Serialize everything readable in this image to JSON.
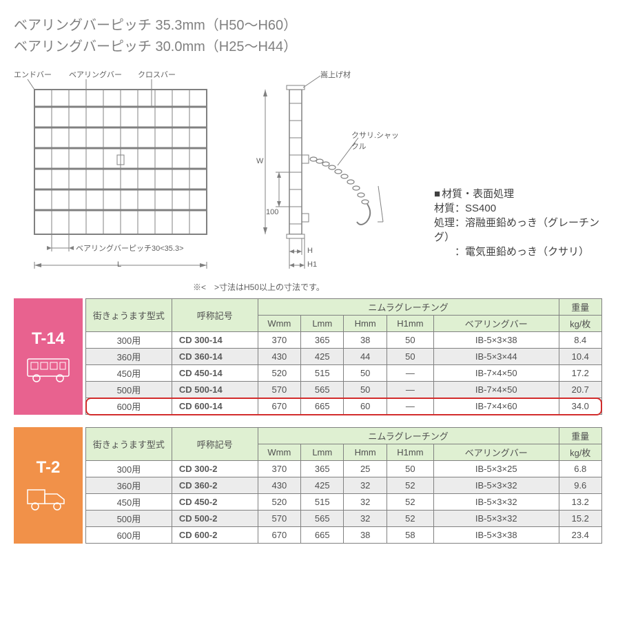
{
  "header": {
    "line1": "ベアリングバーピッチ 35.3mm（H50～H60）",
    "line2": "ベアリングバーピッチ 30.0mm（H25～H44）"
  },
  "diagram1": {
    "labels": {
      "endbar": "エンドバー",
      "bearingbar": "ベアリングバー",
      "crossbar": "クロスバー",
      "pitch": "ベアリングバーピッチ30<35.3>",
      "L": "L"
    },
    "grating": {
      "verticalBars": 9,
      "horizontalBars": 7,
      "stroke": "#808080",
      "fill": "#ffffff"
    }
  },
  "diagram2": {
    "labels": {
      "topNote": "嵩上げ材",
      "chain": "クサリ.シャックル",
      "W": "W",
      "h100": "100",
      "H": "H",
      "H1": "H1"
    },
    "stroke": "#808080"
  },
  "note": "※<　>寸法はH50以上の寸法です。",
  "material": {
    "title": "材質・表面処理",
    "l1": "材質：SS400",
    "l2": "処理：溶融亜鉛めっき（グレーチング）",
    "l3": "　　：電気亜鉛めっき（クサリ）"
  },
  "tables": {
    "headers": {
      "model": "街きょうます型式",
      "code": "呼称記号",
      "group": "ニムラグレーチング",
      "W": "Wmm",
      "L": "Lmm",
      "H": "Hmm",
      "H1": "H1mm",
      "bearing": "ベアリングバー",
      "weight_l1": "重量",
      "weight_l2": "kg/枚"
    },
    "colors": {
      "headerBg": "#dff0d2",
      "shadeBg": "#ececec",
      "border": "#808080",
      "highlight": "#d22b2b",
      "t14": "#e8628f",
      "t2": "#f19149"
    },
    "t14": {
      "badge": "T-14",
      "icon": "bus",
      "rows": [
        {
          "model": "300用",
          "code": "CD 300-14",
          "W": "370",
          "L": "365",
          "H": "38",
          "H1": "50",
          "bearing": "IB-5×3×38",
          "wt": "8.4",
          "shade": false
        },
        {
          "model": "360用",
          "code": "CD 360-14",
          "W": "430",
          "L": "425",
          "H": "44",
          "H1": "50",
          "bearing": "IB-5×3×44",
          "wt": "10.4",
          "shade": true
        },
        {
          "model": "450用",
          "code": "CD 450-14",
          "W": "520",
          "L": "515",
          "H": "50",
          "H1": "—",
          "bearing": "IB-7×4×50",
          "wt": "17.2",
          "shade": false
        },
        {
          "model": "500用",
          "code": "CD 500-14",
          "W": "570",
          "L": "565",
          "H": "50",
          "H1": "—",
          "bearing": "IB-7×4×50",
          "wt": "20.7",
          "shade": true
        },
        {
          "model": "600用",
          "code": "CD 600-14",
          "W": "670",
          "L": "665",
          "H": "60",
          "H1": "—",
          "bearing": "IB-7×4×60",
          "wt": "34.0",
          "shade": false,
          "highlight": true
        }
      ]
    },
    "t2": {
      "badge": "T-2",
      "icon": "truck",
      "rows": [
        {
          "model": "300用",
          "code": "CD 300-2",
          "W": "370",
          "L": "365",
          "H": "25",
          "H1": "50",
          "bearing": "IB-5×3×25",
          "wt": "6.8",
          "shade": false
        },
        {
          "model": "360用",
          "code": "CD 360-2",
          "W": "430",
          "L": "425",
          "H": "32",
          "H1": "52",
          "bearing": "IB-5×3×32",
          "wt": "9.6",
          "shade": true
        },
        {
          "model": "450用",
          "code": "CD 450-2",
          "W": "520",
          "L": "515",
          "H": "32",
          "H1": "52",
          "bearing": "IB-5×3×32",
          "wt": "13.2",
          "shade": false
        },
        {
          "model": "500用",
          "code": "CD 500-2",
          "W": "570",
          "L": "565",
          "H": "32",
          "H1": "52",
          "bearing": "IB-5×3×32",
          "wt": "15.2",
          "shade": true
        },
        {
          "model": "600用",
          "code": "CD 600-2",
          "W": "670",
          "L": "665",
          "H": "38",
          "H1": "58",
          "bearing": "IB-5×3×38",
          "wt": "23.4",
          "shade": false
        }
      ]
    }
  }
}
